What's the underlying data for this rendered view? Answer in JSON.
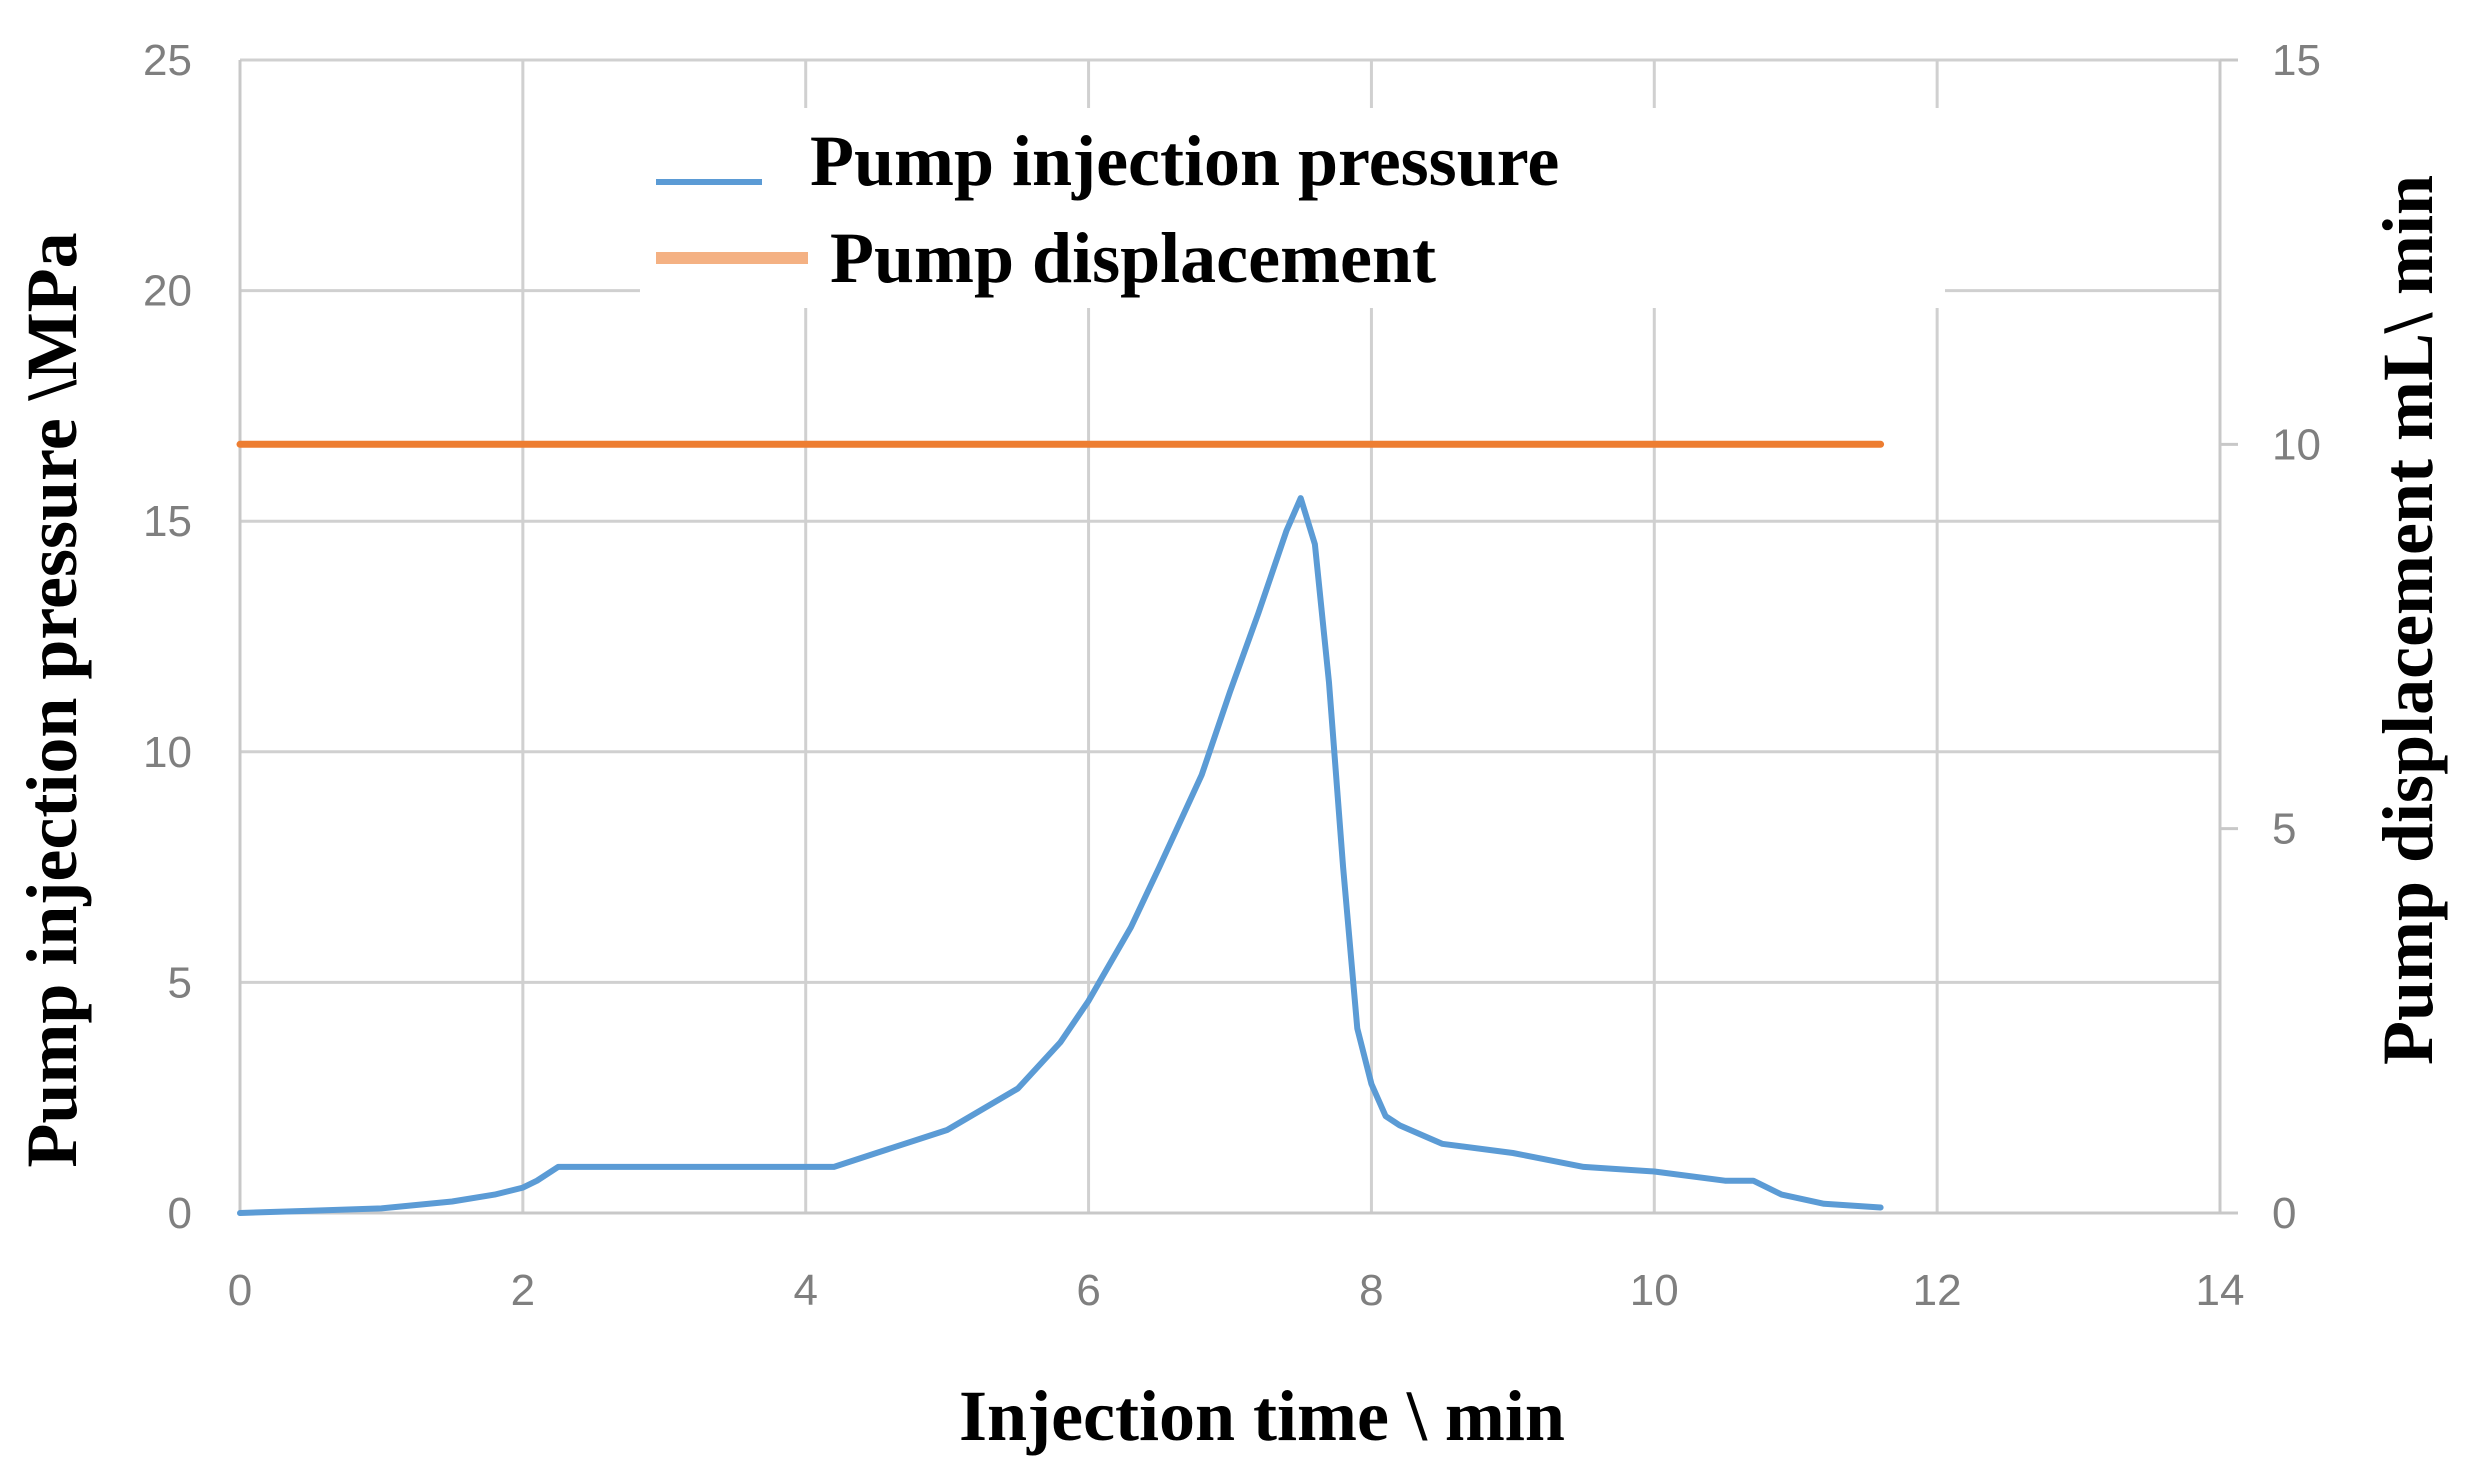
{
  "chart_data": {
    "type": "line",
    "title": "",
    "xlabel": "Injection time \\ min",
    "ylabel_left": "Pump injection pressure \\MPa",
    "ylabel_right": "Pump displacement  mL\\ min",
    "xlim": [
      0,
      14
    ],
    "ylim_left": [
      0,
      25
    ],
    "ylim_right": [
      0,
      15
    ],
    "x_ticks": [
      "0",
      "2",
      "4",
      "6",
      "8",
      "10",
      "12",
      "14"
    ],
    "y_ticks_left": [
      "0",
      "5",
      "10",
      "15",
      "20",
      "25"
    ],
    "y_ticks_right": [
      "0",
      "5",
      "10",
      "15"
    ],
    "grid": true,
    "legend_position": "top-center",
    "series": [
      {
        "name": "Pump injection pressure",
        "axis": "left",
        "color": "#5B9BD5",
        "x": [
          0,
          0.5,
          1.0,
          1.5,
          1.8,
          2.0,
          2.1,
          2.25,
          2.5,
          3.0,
          3.5,
          4.0,
          4.2,
          4.5,
          5.0,
          5.5,
          5.8,
          6.0,
          6.3,
          6.5,
          6.8,
          7.0,
          7.2,
          7.4,
          7.5,
          7.6,
          7.7,
          7.8,
          7.9,
          8.0,
          8.1,
          8.2,
          8.5,
          9.0,
          9.5,
          10.0,
          10.5,
          10.7,
          10.9,
          11.2,
          11.6
        ],
        "y": [
          0,
          0.05,
          0.1,
          0.25,
          0.4,
          0.55,
          0.7,
          1.0,
          1.0,
          1.0,
          1.0,
          1.0,
          1.0,
          1.3,
          1.8,
          2.7,
          3.7,
          4.6,
          6.2,
          7.5,
          9.5,
          11.3,
          13.0,
          14.8,
          15.5,
          14.5,
          11.5,
          7.5,
          4.0,
          2.8,
          2.1,
          1.9,
          1.5,
          1.3,
          1.0,
          0.9,
          0.7,
          0.7,
          0.4,
          0.2,
          0.12
        ]
      },
      {
        "name": "Pump displacement",
        "axis": "right",
        "color": "#ED7D31",
        "legend_color": "#F4B183",
        "x": [
          0,
          11.6
        ],
        "y": [
          10,
          10
        ]
      }
    ]
  }
}
